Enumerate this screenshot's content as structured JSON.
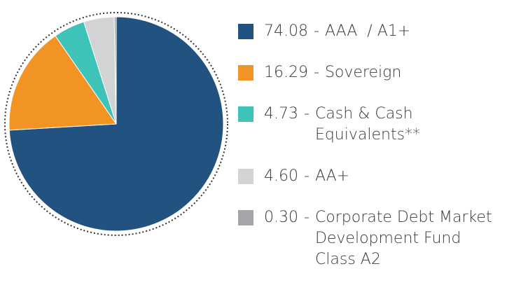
{
  "chart_data": {
    "type": "pie",
    "categories": [
      "AAA  / A1+",
      "Sovereign",
      "Cash & Cash Equivalents**",
      "AA+",
      "Corporate Debt Market Development Fund Class A2"
    ],
    "values": [
      74.08,
      16.29,
      4.73,
      4.6,
      0.3
    ],
    "value_labels": [
      "74.08",
      "16.29",
      "4.73",
      "4.60",
      "0.30"
    ],
    "legend_separator": "-",
    "colors": [
      "#22527f",
      "#f29424",
      "#3ec3b8",
      "#d2d3d5",
      "#a4a5a8"
    ]
  }
}
